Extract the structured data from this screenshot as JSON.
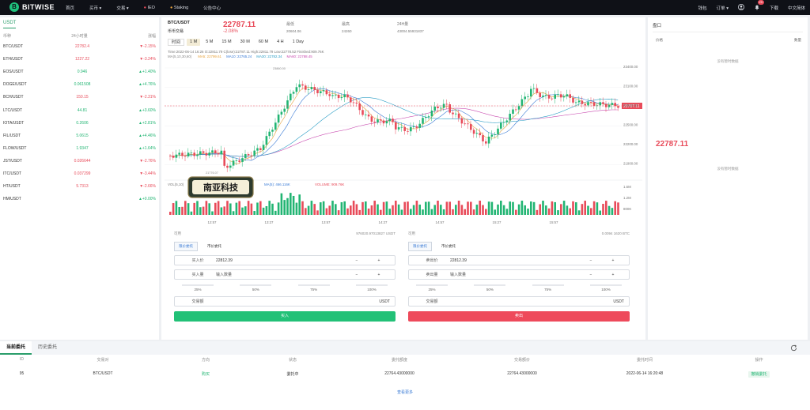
{
  "brand": {
    "name": "BITWISE",
    "mark": "B"
  },
  "nav": [
    "首页",
    "买币 ▾",
    "交易 ▾",
    "IEO",
    "Staking",
    "公告中心"
  ],
  "rnav": {
    "wallet": "钱包",
    "orders": "订单 ▾",
    "badge": "29",
    "download": "下载",
    "lang": "中文简体"
  },
  "colors": {
    "up": "#22b573",
    "down": "#e84b5a",
    "accent": "#2a9d6a"
  },
  "market": {
    "tab": "USDT",
    "headers": [
      "币种",
      "24小时量",
      "涨幅"
    ],
    "rows": [
      {
        "sym": "BTC/USDT",
        "price": "22782.4",
        "chg": "-2.15%",
        "dir": "dn"
      },
      {
        "sym": "ETH/USDT",
        "price": "1227.22",
        "chg": "-3.24%",
        "dir": "dn"
      },
      {
        "sym": "EOS/USDT",
        "price": "0.946",
        "chg": "+1.40%",
        "dir": "up"
      },
      {
        "sym": "DOGE/USDT",
        "price": "0.061508",
        "chg": "+4.76%",
        "dir": "up"
      },
      {
        "sym": "BCH/USDT",
        "price": "150.15",
        "chg": "-2.31%",
        "dir": "dn"
      },
      {
        "sym": "LTC/USDT",
        "price": "44.81",
        "chg": "+3.60%",
        "dir": "up"
      },
      {
        "sym": "IOTA/USDT",
        "price": "0.2606",
        "chg": "+2.81%",
        "dir": "up"
      },
      {
        "sym": "FIL/USDT",
        "price": "5.0615",
        "chg": "+4.46%",
        "dir": "up"
      },
      {
        "sym": "FLOW/USDT",
        "price": "1.9347",
        "chg": "+1.64%",
        "dir": "up"
      },
      {
        "sym": "JST/USDT",
        "price": "0.026644",
        "chg": "-2.76%",
        "dir": "dn"
      },
      {
        "sym": "ITC/USDT",
        "price": "0.037299",
        "chg": "-3.44%",
        "dir": "dn"
      },
      {
        "sym": "HT/USDT",
        "price": "5.7313",
        "chg": "-2.66%",
        "dir": "dn"
      },
      {
        "sym": "HM/USDT",
        "price": "",
        "chg": "+0.00%",
        "dir": "up"
      }
    ]
  },
  "ticker": {
    "pair": "BTC/USDT",
    "sub": "币币交易",
    "price": "22787.11",
    "change": "-2.08%",
    "stats": [
      {
        "t": "最低",
        "v": "20604.06"
      },
      {
        "t": "最高",
        "v": "24260"
      },
      {
        "t": "24H量",
        "v": "43004.55931837"
      }
    ]
  },
  "intervals": [
    "时间",
    "1 M",
    "5 M",
    "15 M",
    "30 M",
    "60 M",
    "4 H",
    "1 Day"
  ],
  "chart": {
    "info": "Time:2022-06-14 16:26   O:22811.79   C(lose):22787.11   High:22811.79   Low:22778.52   Finished:909.76K",
    "ma": [
      {
        "t": "MA(5,10,30,60)",
        "c": "#888"
      },
      {
        "t": "MA5: 22799.61",
        "c": "#e6a23c"
      },
      {
        "t": "MA10: 22765.24",
        "c": "#3a7bd5"
      },
      {
        "t": "MA30: 22782.34",
        "c": "#2a9dc5"
      },
      {
        "t": "MA60: 22788.45",
        "c": "#c94bb0"
      }
    ],
    "yticks": [
      "23400.00",
      "23100.00",
      "22800.00",
      "22500.00",
      "22200.00",
      "21900.00"
    ],
    "priceTag": "22787.11",
    "hi": "23860.00",
    "lo": "21776.07",
    "vol": {
      "label": "VOL(5,10)",
      "ma": "MA(5): 466.116K",
      "vol": "VOLUME: 909.76K"
    },
    "vticks": [
      "1.6M",
      "1.2M",
      "800K"
    ],
    "xticks": [
      "12:57",
      "13:27",
      "13:57",
      "14:27",
      "14:57",
      "15:27",
      "15:57"
    ],
    "watermark": "南亚科技"
  },
  "orderbook": {
    "title": "盘口",
    "cols": [
      "价格",
      "数量"
    ],
    "empty": "没有暂时数据",
    "empty2": "没有暂时数据",
    "price": "22787.11"
  },
  "buy": {
    "label": "可用",
    "avail": "976020.97013827 USDT",
    "types": [
      "限价委托",
      "市价委托"
    ],
    "priceLbl": "买入价",
    "price": "22812.39",
    "amtLbl": "买入量",
    "amtPh": "输入数量",
    "pcts": [
      "25%",
      "50%",
      "75%",
      "100%"
    ],
    "totalLbl": "交易额",
    "unit": "USDT",
    "btn": "买入"
  },
  "sell": {
    "label": "可用",
    "avail": "0.0094 1620 BTC",
    "types": [
      "限价委托",
      "市价委托"
    ],
    "priceLbl": "卖出价",
    "price": "22812.39",
    "amtLbl": "卖出量",
    "amtPh": "输入数量",
    "pcts": [
      "25%",
      "50%",
      "75%",
      "100%"
    ],
    "totalLbl": "交易额",
    "unit": "USDT",
    "btn": "卖出"
  },
  "orders": {
    "tabs": [
      "当前委托",
      "历史委托"
    ],
    "headers": [
      "ID",
      "交易对",
      "方向",
      "状态",
      "委托额度",
      "交易额价",
      "委托时间",
      "操作"
    ],
    "row": [
      "95",
      "BTC/USDT",
      "购买",
      "委托中",
      "22764.43000000",
      "22764.43000000",
      "2022-06-14 16:20:48",
      "撤销委托"
    ],
    "more": "查看更多"
  }
}
